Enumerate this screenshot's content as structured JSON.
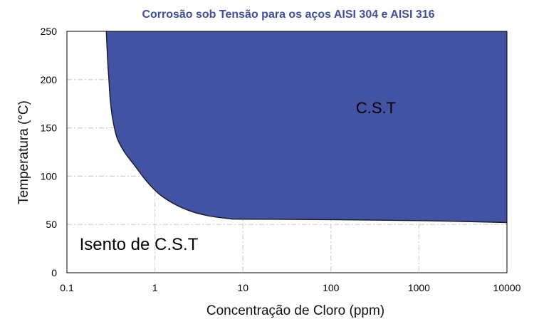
{
  "chart_data": {
    "type": "area",
    "title": "Corrosão sob Tensão para os aços AISI 304 e AISI 316",
    "xlabel": "Concentração de Cloro (ppm)",
    "ylabel": "Temperatura (°C)",
    "x_scale": "log",
    "xlim": [
      0.1,
      10000
    ],
    "ylim": [
      0,
      250
    ],
    "x_ticks": [
      0.1,
      1,
      10,
      100,
      1000,
      10000
    ],
    "x_tick_labels": [
      "0.1",
      "1",
      "10",
      "100",
      "1000",
      "10000"
    ],
    "y_ticks": [
      0,
      50,
      100,
      150,
      200,
      250
    ],
    "y_tick_labels": [
      "0",
      "50",
      "100",
      "150",
      "200",
      "250"
    ],
    "grid": true,
    "boundary_curve": {
      "x": [
        0.28,
        0.29,
        0.3,
        0.31,
        0.33,
        0.37,
        0.45,
        0.6,
        0.8,
        1.1,
        1.6,
        2.5,
        4,
        7,
        10,
        100,
        1000,
        10000
      ],
      "y": [
        250,
        220,
        200,
        180,
        160,
        140,
        125,
        110,
        95,
        82,
        72,
        64,
        59,
        56,
        55.5,
        55,
        54,
        52
      ]
    },
    "regions": [
      {
        "label": "C.S.T",
        "color": "#4353a3"
      },
      {
        "label": "Isento de C.S.T",
        "color": "#ffffff"
      }
    ],
    "colors": {
      "fill": "#4353a3",
      "title": "#3f4fa0",
      "grid": "#cfcfcf",
      "boundary": "#1a1a1a"
    }
  }
}
